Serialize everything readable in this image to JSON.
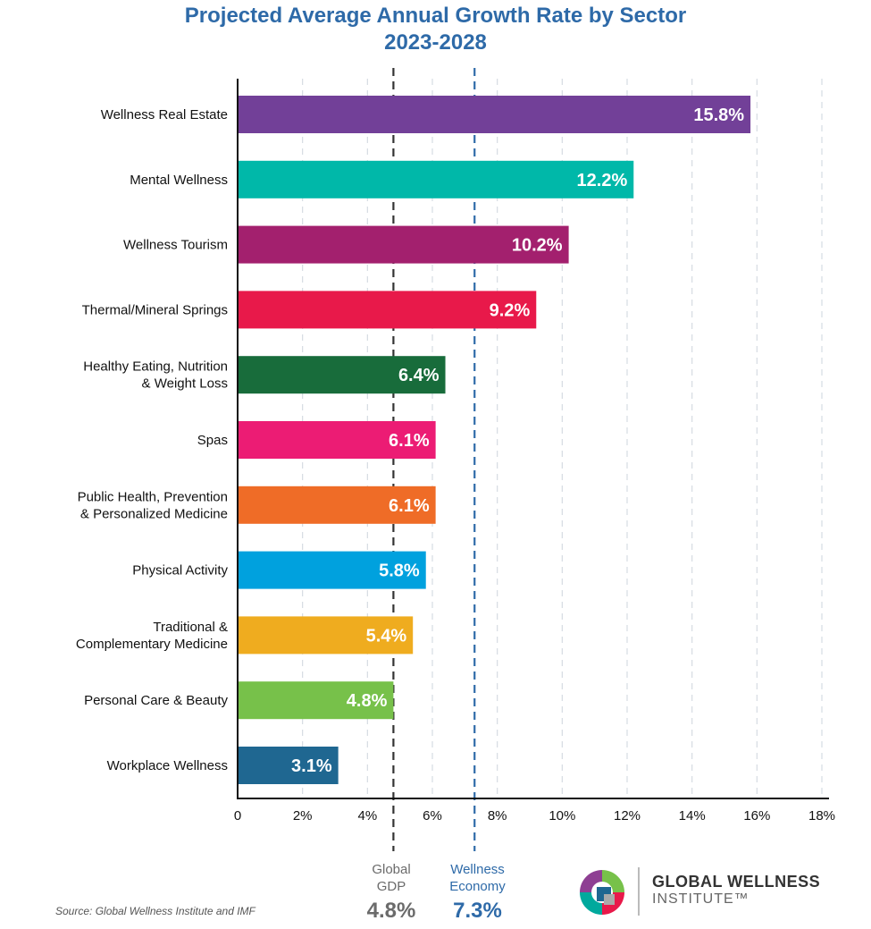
{
  "title": {
    "line1": "Projected Average Annual Growth Rate by Sector",
    "line2": "2023-2028"
  },
  "chart_data": {
    "type": "bar",
    "orientation": "horizontal",
    "categories": [
      [
        "Wellness Real Estate"
      ],
      [
        "Mental Wellness"
      ],
      [
        "Wellness Tourism"
      ],
      [
        "Thermal/Mineral Springs"
      ],
      [
        "Healthy Eating, Nutrition",
        "& Weight Loss"
      ],
      [
        "Spas"
      ],
      [
        "Public Health, Prevention",
        "& Personalized Medicine"
      ],
      [
        "Physical Activity"
      ],
      [
        "Traditional &",
        "Complementary Medicine"
      ],
      [
        "Personal Care & Beauty"
      ],
      [
        "Workplace Wellness"
      ]
    ],
    "values": [
      15.8,
      12.2,
      10.2,
      9.2,
      6.4,
      6.1,
      6.1,
      5.8,
      5.4,
      4.8,
      3.1
    ],
    "value_labels": [
      "15.8%",
      "12.2%",
      "10.2%",
      "9.2%",
      "6.4%",
      "6.1%",
      "6.1%",
      "5.8%",
      "5.4%",
      "4.8%",
      "3.1%"
    ],
    "colors": [
      "#724098",
      "#00b8a9",
      "#a3206e",
      "#e8194a",
      "#186c3b",
      "#ec1c74",
      "#ef6c27",
      "#00a1de",
      "#efac1f",
      "#77c14a",
      "#1f6791"
    ],
    "xlim": [
      0,
      18
    ],
    "xticks": [
      0,
      2,
      4,
      6,
      8,
      10,
      12,
      14,
      16,
      18
    ],
    "xtick_labels": [
      "0",
      "2%",
      "4%",
      "6%",
      "8%",
      "10%",
      "12%",
      "14%",
      "16%",
      "18%"
    ],
    "grid": "vertical dashed",
    "reference_lines": [
      {
        "value": 4.8,
        "label": [
          "Global",
          "GDP"
        ],
        "value_label": "4.8%",
        "color": "#333333"
      },
      {
        "value": 7.3,
        "label": [
          "Wellness",
          "Economy"
        ],
        "value_label": "7.3%",
        "color": "#2e6aa8"
      }
    ]
  },
  "source": "Source: Global Wellness Institute and IMF",
  "logo": {
    "line1": "GLOBAL WELLNESS",
    "line2": "INSTITUTE™"
  }
}
